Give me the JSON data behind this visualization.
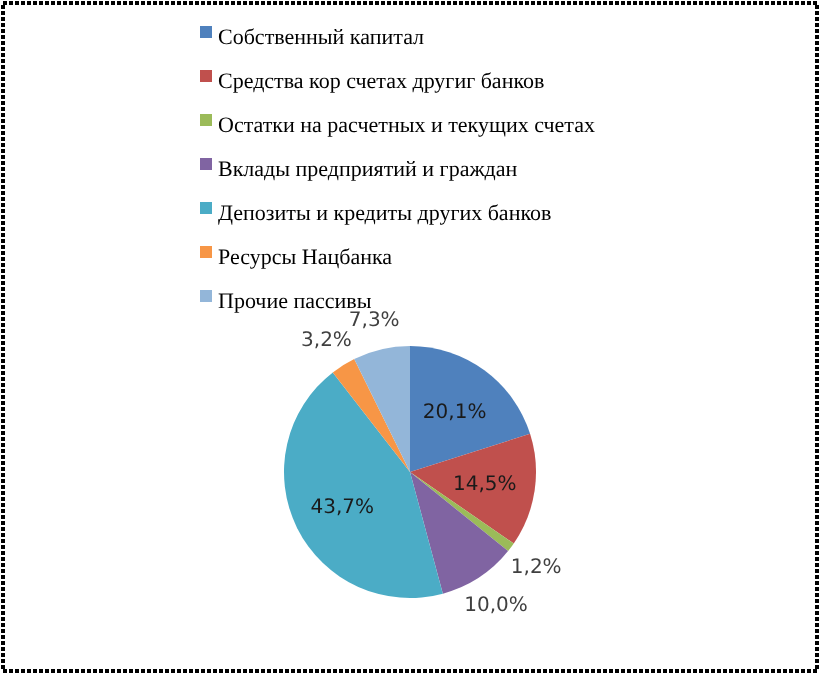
{
  "chart_data": {
    "type": "pie",
    "categories": [
      "Собственный капитал",
      "Средства кор счетах другиг банков",
      "Остатки на расчетных и текущих счетах",
      "Вклады предприятий и граждан",
      "Депозиты и кредиты других банков",
      "Ресурсы Нацбанка",
      "Прочие пассивы"
    ],
    "values": [
      20.1,
      14.5,
      1.2,
      10.0,
      43.7,
      3.2,
      7.3
    ],
    "colors": [
      "#4f81bd",
      "#c0504d",
      "#9bbb59",
      "#8064a2",
      "#4bacc6",
      "#f79646",
      "#93b6d9"
    ],
    "value_labels": [
      "20,1%",
      "14,5%",
      "1,2%",
      "10,0%",
      "43,7%",
      "3,2%",
      "7,3%"
    ],
    "legend": "top"
  }
}
